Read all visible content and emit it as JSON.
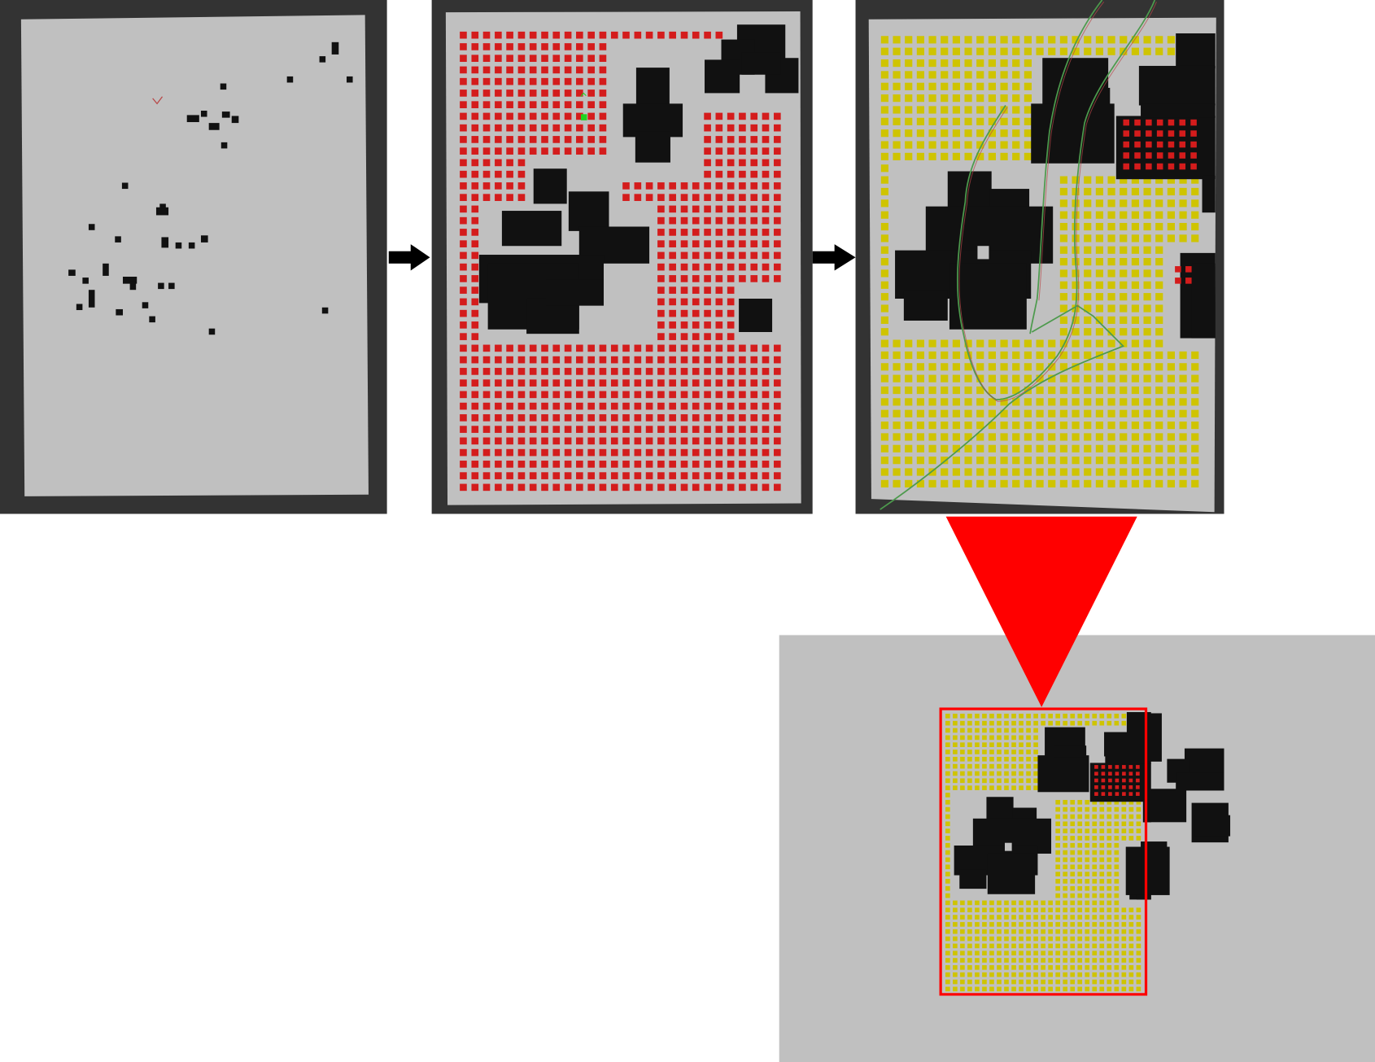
{
  "colors": {
    "frame": "#333333",
    "map_background": "#c0c0c0",
    "obstacle": "#111111",
    "cell_red": "#d41c1c",
    "cell_yellow": "#cfc400",
    "start_marker": "#1fd41f",
    "trajectory_green": "#4d9a4d",
    "trajectory_red": "#b84848",
    "zoom_pointer": "#ff0000",
    "zoom_frame": "#ff0000",
    "arrow": "#000000",
    "page": "#ffffff"
  },
  "icons": {
    "step_arrows": [
      "arrow-right-icon",
      "arrow-right-icon"
    ],
    "zoom_pointer": "triangle-down-icon"
  }
}
